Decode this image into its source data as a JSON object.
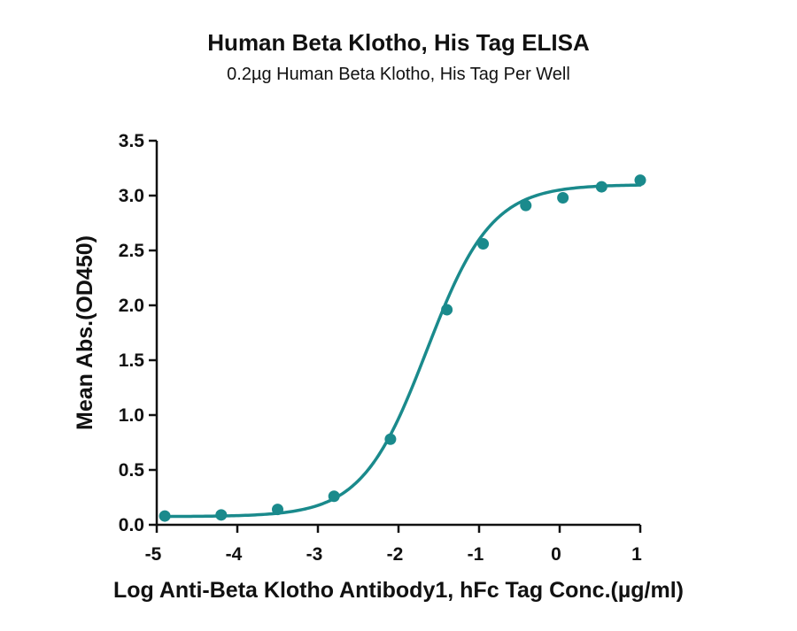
{
  "chart_data": {
    "type": "scatter",
    "title": "Human Beta Klotho, His Tag ELISA",
    "subtitle": "0.2µg Human Beta Klotho, His Tag Per Well",
    "xlabel": "Log Anti-Beta Klotho Antibody1, hFc Tag Conc.(µg/ml)",
    "ylabel": "Mean Abs.(OD450)",
    "xlim": [
      -5,
      1
    ],
    "ylim": [
      0,
      3.5
    ],
    "xticks": [
      -5,
      -4,
      -3,
      -2,
      -1,
      0,
      1
    ],
    "yticks": [
      0.0,
      0.5,
      1.0,
      1.5,
      2.0,
      2.5,
      3.0,
      3.5
    ],
    "xtick_labels": [
      "-5",
      "-4",
      "-3",
      "-2",
      "-1",
      "0",
      "1"
    ],
    "ytick_labels": [
      "0.0",
      "0.5",
      "1.0",
      "1.5",
      "2.0",
      "2.5",
      "3.0",
      "3.5"
    ],
    "grid": false,
    "color": "#1a8a8c",
    "series": [
      {
        "x": [
          -4.9,
          -4.2,
          -3.5,
          -2.8,
          -2.1,
          -1.4,
          -0.95,
          -0.42,
          0.04,
          0.52,
          1.0
        ],
        "y": [
          0.08,
          0.09,
          0.14,
          0.26,
          0.78,
          1.96,
          2.56,
          2.91,
          2.98,
          3.08,
          3.14
        ]
      }
    ],
    "fit": {
      "type": "4PL",
      "bottom": 0.075,
      "top": 3.1,
      "log_ec50": -1.65,
      "hill_slope": 1.08
    }
  }
}
